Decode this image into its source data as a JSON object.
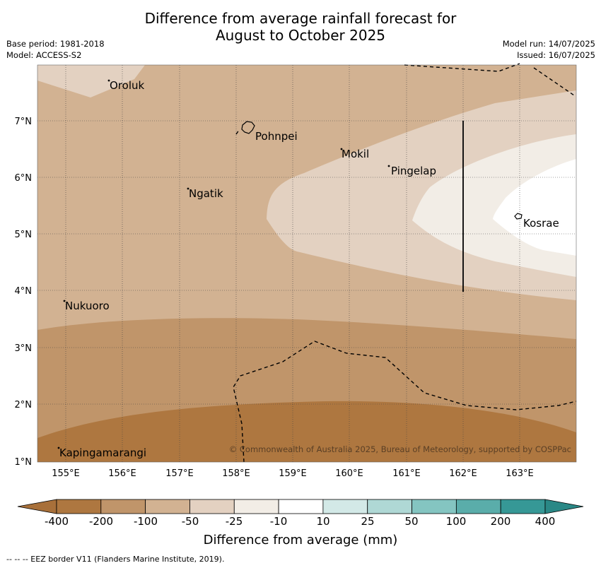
{
  "title_line1": "Difference from average rainfall forecast for",
  "title_line2": "August to October 2025",
  "base_period": "Base period: 1981-2018",
  "model": "Model: ACCESS-S2",
  "model_run": "Model run: 14/07/2025",
  "issued": "Issued: 16/07/2025",
  "lon_ticks": [
    "155°E",
    "156°E",
    "157°E",
    "158°E",
    "159°E",
    "160°E",
    "161°E",
    "162°E",
    "163°E"
  ],
  "lat_ticks": [
    "7°N",
    "6°N",
    "5°N",
    "4°N",
    "3°N",
    "2°N",
    "1°N"
  ],
  "places": [
    {
      "name": "Oroluk"
    },
    {
      "name": "Pohnpei"
    },
    {
      "name": "Mokil"
    },
    {
      "name": "Pingelap"
    },
    {
      "name": "Ngatik"
    },
    {
      "name": "Kosrae"
    },
    {
      "name": "Nukuoro"
    },
    {
      "name": "Kapingamarangi"
    }
  ],
  "copyright": "© Commonwealth of Australia 2025, Bureau of Meteorology, supported by COSPPac",
  "legend": {
    "title": "Difference from average (mm)",
    "ticks": [
      "-400",
      "-200",
      "-100",
      "-50",
      "-25",
      "-10",
      "10",
      "25",
      "50",
      "100",
      "200",
      "400"
    ],
    "colors": [
      "#a8703a",
      "#ae7740",
      "#c0956a",
      "#d2b292",
      "#e3d1c1",
      "#f2ede6",
      "#ffffff",
      "#d3e9e7",
      "#afd8d5",
      "#84c5c1",
      "#5aadaa",
      "#369896",
      "#2a8886"
    ]
  },
  "footnote": "--  --  -- EEZ border V11 (Flanders Marine Institute, 2019)."
}
